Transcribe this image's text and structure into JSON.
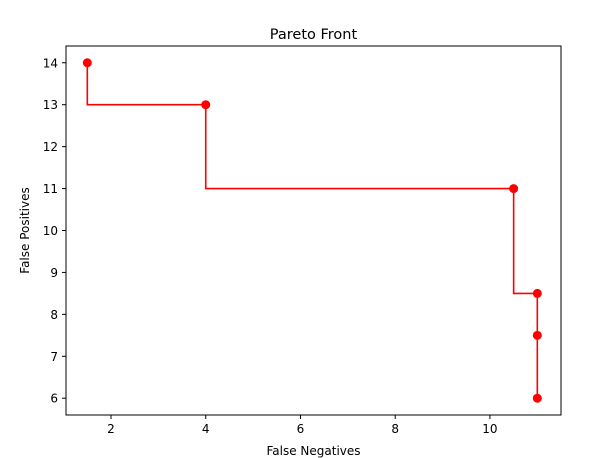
{
  "chart_data": {
    "type": "line",
    "title": "Pareto Front",
    "xlabel": "False Negatives",
    "ylabel": "False Positives",
    "xlim": [
      1.05,
      11.5
    ],
    "ylim": [
      5.6,
      14.4
    ],
    "xticks": [
      2,
      4,
      6,
      8,
      10
    ],
    "yticks": [
      6,
      7,
      8,
      9,
      10,
      11,
      12,
      13,
      14
    ],
    "grid": false,
    "series_color": "#ff0000",
    "step": "post-vertical",
    "series": [
      {
        "x": [
          1.5,
          4.0,
          10.5,
          11.0,
          11.0,
          11.0
        ],
        "y": [
          14.0,
          13.0,
          11.0,
          8.5,
          7.5,
          6.0
        ]
      }
    ]
  }
}
